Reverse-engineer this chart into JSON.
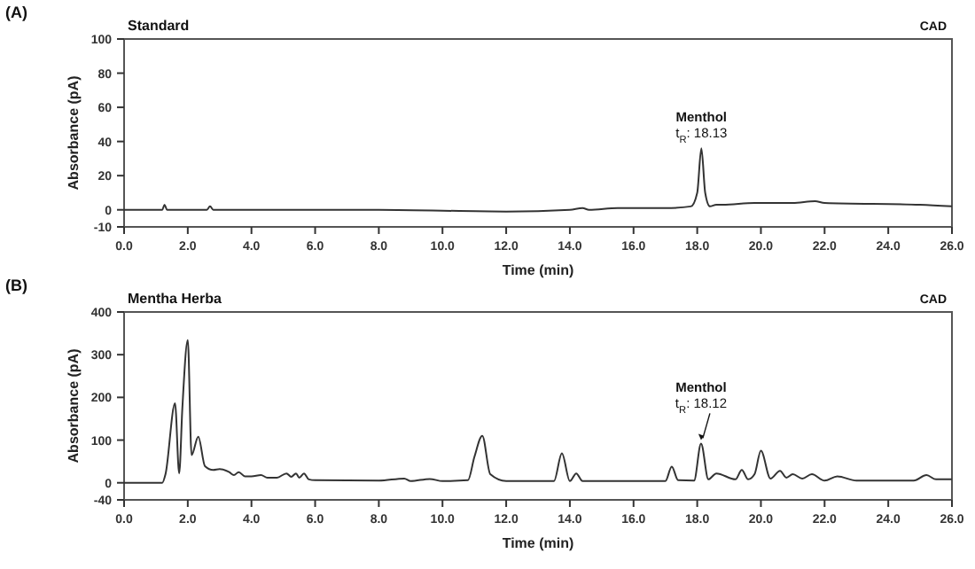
{
  "chart_data": [
    {
      "type": "line",
      "title": "Standard",
      "subtitle": "CAD",
      "xlabel": "Time (min)",
      "ylabel": "Absorbance (pA)",
      "annotations": [
        "(A)",
        {
          "text": "Menthol\nt$_{R}$: 18.13",
          "x": 18.13,
          "y": 36
        }
      ],
      "xlim": [
        0,
        26
      ],
      "ylim": [
        -10,
        100
      ],
      "xticks": [
        {
          "value": 0,
          "label": "0.0"
        },
        {
          "value": 2,
          "label": "2.0"
        },
        {
          "value": 4,
          "label": "4.0"
        },
        {
          "value": 6,
          "label": "6.0"
        },
        {
          "value": 8,
          "label": "8.0"
        },
        {
          "value": 10,
          "label": "10.0"
        },
        {
          "value": 12,
          "label": "12.0"
        },
        {
          "value": 14,
          "label": "14.0"
        },
        {
          "value": 16,
          "label": "16.0"
        },
        {
          "value": 18,
          "label": "18.0"
        },
        {
          "value": 20,
          "label": "20.0"
        },
        {
          "value": 22,
          "label": "22.0"
        },
        {
          "value": 24,
          "label": "24.0"
        },
        {
          "value": 26,
          "label": "26.0"
        }
      ],
      "yticks": [
        -10,
        0,
        20,
        40,
        60,
        80,
        100
      ],
      "series": [
        {
          "color": "#333333",
          "x": [
            0,
            1.2,
            1.27,
            1.35,
            1.9,
            2.0,
            2.6,
            2.7,
            2.8,
            4,
            8,
            12,
            14,
            14.4,
            14.6,
            15.5,
            17,
            17.8,
            18.0,
            18.13,
            18.25,
            18.4,
            18.6,
            18.8,
            19.8,
            21,
            21.7,
            22,
            25,
            26
          ],
          "values": [
            0,
            0,
            3,
            0,
            0,
            0,
            0,
            2,
            0,
            0,
            0,
            -1,
            0,
            1,
            0,
            1,
            1,
            2,
            10,
            36,
            10,
            2,
            3,
            3,
            4,
            4,
            5,
            4,
            3,
            2
          ]
        }
      ]
    },
    {
      "type": "line",
      "title": "Mentha Herba",
      "subtitle": "CAD",
      "xlabel": "Time (min)",
      "ylabel": "Absorbance (pA)",
      "annotations": [
        "(B)",
        {
          "text": "Menthol\nt$_{R}$: 18.12",
          "x": 18.12,
          "y": 92
        }
      ],
      "xlim": [
        0,
        26
      ],
      "ylim": [
        -40,
        400
      ],
      "xticks": [
        {
          "value": 0,
          "label": "0.0"
        },
        {
          "value": 2,
          "label": "2.0"
        },
        {
          "value": 4,
          "label": "4.0"
        },
        {
          "value": 6,
          "label": "6.0"
        },
        {
          "value": 8,
          "label": "8.0"
        },
        {
          "value": 10,
          "label": "10.0"
        },
        {
          "value": 12,
          "label": "12.0"
        },
        {
          "value": 14,
          "label": "14.0"
        },
        {
          "value": 16,
          "label": "16.0"
        },
        {
          "value": 18,
          "label": "18.0"
        },
        {
          "value": 20,
          "label": "20.0"
        },
        {
          "value": 22,
          "label": "22.0"
        },
        {
          "value": 24,
          "label": "24.0"
        },
        {
          "value": 26,
          "label": "26.0"
        }
      ],
      "yticks": [
        -40,
        0,
        100,
        200,
        300,
        400
      ],
      "series": [
        {
          "color": "#333333",
          "x": [
            0,
            1.2,
            1.3,
            1.6,
            1.73,
            1.83,
            2.0,
            2.12,
            2.33,
            2.54,
            2.8,
            3.0,
            3.3,
            3.45,
            3.6,
            3.8,
            4.0,
            4.3,
            4.5,
            4.8,
            5.1,
            5.25,
            5.4,
            5.5,
            5.65,
            5.8,
            6.0,
            8.0,
            8.8,
            9.0,
            9.6,
            10.0,
            10.8,
            11.0,
            11.25,
            11.5,
            12,
            13.5,
            13.75,
            14.0,
            14.2,
            14.4,
            17.0,
            17.2,
            17.4,
            17.9,
            18.12,
            18.35,
            18.6,
            19.2,
            19.4,
            19.6,
            19.8,
            20.0,
            20.3,
            20.6,
            20.8,
            21.0,
            21.3,
            21.6,
            22.0,
            22.4,
            23.0,
            24.8,
            25.2,
            25.5,
            26
          ],
          "values": [
            0,
            0,
            20,
            186,
            22,
            175,
            334,
            65,
            108,
            39,
            30,
            32,
            25,
            18,
            25,
            15,
            15,
            18,
            12,
            12,
            22,
            14,
            22,
            12,
            22,
            8,
            6,
            5,
            10,
            4,
            9,
            4,
            6,
            60,
            110,
            20,
            4,
            4,
            69,
            4,
            22,
            4,
            4,
            38,
            6,
            5,
            92,
            8,
            22,
            8,
            30,
            8,
            20,
            75,
            10,
            28,
            12,
            20,
            10,
            20,
            5,
            15,
            5,
            5,
            18,
            8,
            8
          ]
        }
      ]
    }
  ]
}
